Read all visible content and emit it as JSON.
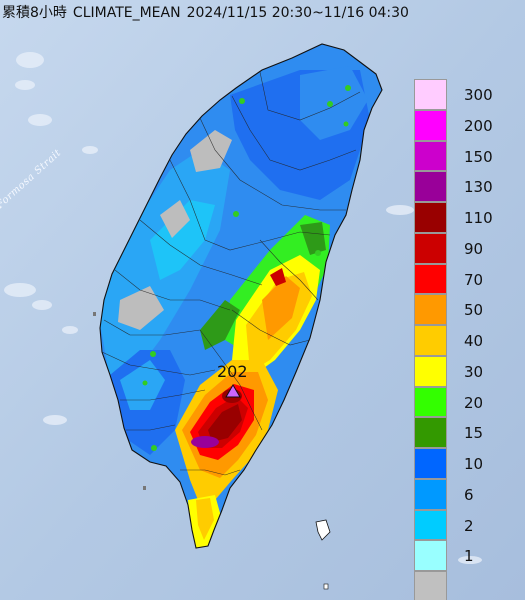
{
  "title": {
    "prefix": "累積8小時",
    "product": "CLIMATE_MEAN",
    "period": "2024/11/15 20:30~11/16 04:30"
  },
  "map": {
    "sea_label": "Formosa Strait",
    "max_value_label": "202",
    "max_marker_color": "#cc66ff"
  },
  "legend": {
    "items": [
      {
        "label": "300",
        "color": "#ffccff"
      },
      {
        "label": "200",
        "color": "#ff00ff"
      },
      {
        "label": "150",
        "color": "#cc00cc"
      },
      {
        "label": "130",
        "color": "#990099"
      },
      {
        "label": "110",
        "color": "#990000"
      },
      {
        "label": "90",
        "color": "#cc0000"
      },
      {
        "label": "70",
        "color": "#ff0000"
      },
      {
        "label": "50",
        "color": "#ff9900"
      },
      {
        "label": "40",
        "color": "#ffcc00"
      },
      {
        "label": "30",
        "color": "#ffff00"
      },
      {
        "label": "20",
        "color": "#33ff00"
      },
      {
        "label": "15",
        "color": "#339900"
      },
      {
        "label": "10",
        "color": "#0066ff"
      },
      {
        "label": "6",
        "color": "#0099ff"
      },
      {
        "label": "2",
        "color": "#00ccff"
      },
      {
        "label": "1",
        "color": "#99ffff"
      },
      {
        "label": "",
        "color": "#c0c0c0"
      }
    ]
  },
  "colors": {
    "sea": "#b8cfe8",
    "cloud": "#e6eef8"
  }
}
